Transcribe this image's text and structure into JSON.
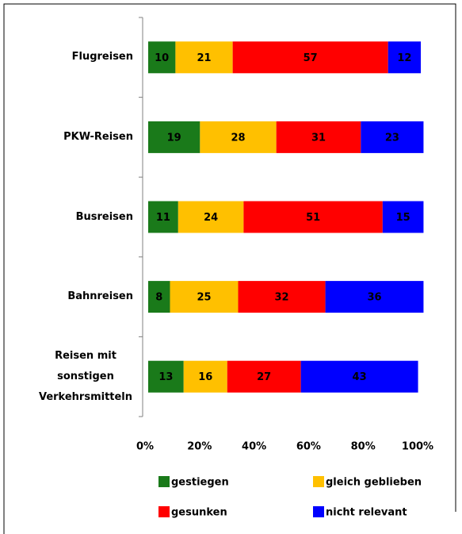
{
  "chart_data": {
    "type": "stacked-bar-horizontal",
    "categories": [
      "Flugreisen",
      "PKW-Reisen",
      "Busreisen",
      "Bahnreisen",
      "Reisen mit sonstigen Verkehrsmitteln"
    ],
    "series": [
      {
        "name": "gestiegen",
        "color": "#1a7a1a",
        "values": [
          10,
          19,
          11,
          8,
          13
        ]
      },
      {
        "name": "gleich geblieben",
        "color": "#ffc000",
        "values": [
          21,
          28,
          24,
          25,
          16
        ]
      },
      {
        "name": "gesunken",
        "color": "#ff0000",
        "values": [
          57,
          31,
          51,
          32,
          27
        ]
      },
      {
        "name": "nicht relevant",
        "color": "#0000ff",
        "values": [
          12,
          23,
          15,
          36,
          43
        ]
      }
    ],
    "xlim": [
      0,
      100
    ],
    "xticks": [
      {
        "value": 0,
        "label": "0%"
      },
      {
        "value": 20,
        "label": "20%"
      },
      {
        "value": 40,
        "label": "40%"
      },
      {
        "value": 60,
        "label": "60%"
      },
      {
        "value": 80,
        "label": "80%"
      },
      {
        "value": 100,
        "label": "100%"
      }
    ],
    "legend": "bottom"
  }
}
